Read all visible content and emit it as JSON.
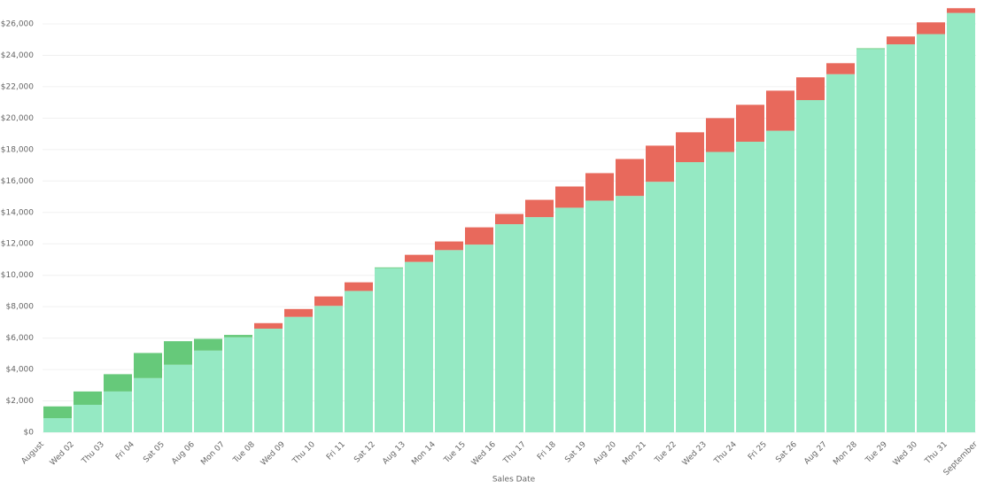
{
  "chart_data": {
    "type": "stacked_bar",
    "x_label": "Sales Date",
    "xticks": [
      "August",
      "Wed 02",
      "Thu 03",
      "Fri 04",
      "Sat 05",
      "Aug 06",
      "Mon 07",
      "Tue 08",
      "Wed 09",
      "Thu 10",
      "Fri 11",
      "Sat 12",
      "Aug 13",
      "Mon 14",
      "Tue 15",
      "Wed 16",
      "Thu 17",
      "Fri 18",
      "Sat 19",
      "Aug 20",
      "Mon 21",
      "Tue 22",
      "Wed 23",
      "Thu 24",
      "Fri 25",
      "Sat 26",
      "Aug 27",
      "Mon 28",
      "Tue 29",
      "Wed 30",
      "Thu 31",
      "September"
    ],
    "series": [
      {
        "color": "#95e9c3",
        "values": [
          900,
          1750,
          2600,
          3450,
          4300,
          5200,
          6050,
          6600,
          7350,
          8050,
          9000,
          10450,
          10850,
          11600,
          11950,
          13250,
          13700,
          14300,
          14750,
          15050,
          15950,
          17200,
          17850,
          18500,
          19200,
          21150,
          22800,
          24400,
          24700,
          25350,
          26700
        ]
      },
      {
        "colors": [
          "#66c97a",
          "#66c97a",
          "#66c97a",
          "#66c97a",
          "#66c97a",
          "#66c97a",
          "#66c97a",
          "#e8695c",
          "#e8695c",
          "#e8695c",
          "#e8695c",
          "#66c97a",
          "#e8695c",
          "#e8695c",
          "#e8695c",
          "#e8695c",
          "#e8695c",
          "#e8695c",
          "#e8695c",
          "#e8695c",
          "#e8695c",
          "#e8695c",
          "#e8695c",
          "#e8695c",
          "#e8695c",
          "#e8695c",
          "#e8695c",
          "#66c97a",
          "#e8695c",
          "#e8695c",
          "#e8695c"
        ],
        "values": [
          750,
          850,
          1100,
          1600,
          1500,
          750,
          150,
          350,
          500,
          600,
          550,
          50,
          450,
          550,
          1100,
          650,
          1100,
          1350,
          1750,
          2350,
          2300,
          1900,
          2150,
          2350,
          2550,
          1450,
          700,
          50,
          500,
          750,
          300
        ]
      }
    ],
    "ylim": [
      0,
      27000
    ],
    "yticks": [
      {
        "value": 0,
        "label": "$0"
      },
      {
        "value": 2000,
        "label": "$2,000"
      },
      {
        "value": 4000,
        "label": "$4,000"
      },
      {
        "value": 6000,
        "label": "$6,000"
      },
      {
        "value": 8000,
        "label": "$8,000"
      },
      {
        "value": 10000,
        "label": "$10,000"
      },
      {
        "value": 12000,
        "label": "$12,000"
      },
      {
        "value": 14000,
        "label": "$14,000"
      },
      {
        "value": 16000,
        "label": "$16,000"
      },
      {
        "value": 18000,
        "label": "$18,000"
      },
      {
        "value": 20000,
        "label": "$20,000"
      },
      {
        "value": 22000,
        "label": "$22,000"
      },
      {
        "value": 24000,
        "label": "$24,000"
      },
      {
        "value": 26000,
        "label": "$26,000"
      }
    ],
    "grid": true
  }
}
